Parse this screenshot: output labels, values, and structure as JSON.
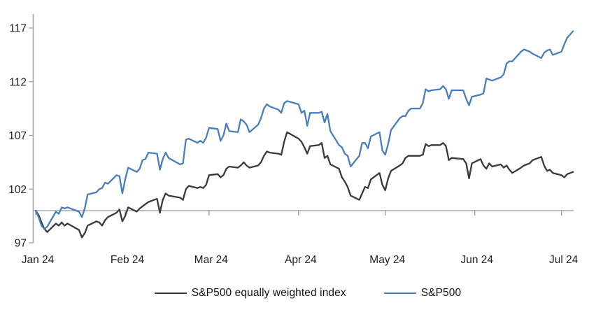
{
  "chart_data": {
    "type": "line",
    "title": "",
    "description": "Indexed performance (start of 2024 = 100) of the S&P500 equally weighted index versus the S&P500, January 2024 to early July 2024",
    "x_axis": {
      "tick_labels": [
        "Jan 24",
        "Feb 24",
        "Mar 24",
        "Apr 24",
        "May 24",
        "Jun 24",
        "Jul 24"
      ],
      "tick_days": [
        1,
        32,
        61,
        92,
        122,
        153,
        183
      ],
      "domain_days": [
        1,
        188
      ],
      "grid": false
    },
    "y_axis": {
      "tick_labels": [
        "97",
        "102",
        "107",
        "112",
        "117"
      ],
      "ticks": [
        97,
        102,
        107,
        112,
        117
      ],
      "range": [
        97,
        118.4
      ],
      "baseline_value": 100,
      "grid": false
    },
    "legend": {
      "position": "bottom-center",
      "entries": [
        {
          "label": "S&P500 equally weighted index",
          "color": "#3a3a3a"
        },
        {
          "label": "S&P500",
          "color": "#4a7ebb"
        }
      ]
    },
    "series": [
      {
        "name": "S&P500 equally weighted index",
        "color": "#3a3a3a",
        "days": [
          1,
          2,
          3,
          4,
          5,
          8,
          9,
          10,
          11,
          12,
          16,
          17,
          18,
          19,
          22,
          23,
          24,
          25,
          26,
          29,
          30,
          31,
          32,
          33,
          36,
          37,
          38,
          39,
          40,
          43,
          44,
          45,
          46,
          47,
          51,
          52,
          53,
          54,
          57,
          58,
          59,
          60,
          61,
          64,
          65,
          66,
          67,
          68,
          71,
          72,
          73,
          74,
          75,
          78,
          79,
          80,
          81,
          82,
          85,
          86,
          87,
          88,
          92,
          93,
          94,
          95,
          96,
          99,
          100,
          101,
          102,
          103,
          106,
          107,
          108,
          109,
          110,
          113,
          114,
          115,
          116,
          117,
          120,
          121,
          122,
          123,
          124,
          127,
          128,
          129,
          130,
          131,
          134,
          135,
          136,
          137,
          138,
          141,
          142,
          143,
          144,
          145,
          149,
          150,
          151,
          152,
          155,
          156,
          157,
          158,
          159,
          162,
          163,
          164,
          165,
          166,
          169,
          170,
          172,
          173,
          176,
          177,
          178,
          179,
          180,
          183,
          184,
          185,
          187
        ],
        "values": [
          100.0,
          99.6,
          98.9,
          98.3,
          98.0,
          98.8,
          98.6,
          98.9,
          98.6,
          98.8,
          98.2,
          97.5,
          97.9,
          98.6,
          99.0,
          98.9,
          98.6,
          99.1,
          99.4,
          99.8,
          100.1,
          99.0,
          99.5,
          100.3,
          99.9,
          100.2,
          100.4,
          100.6,
          100.8,
          101.1,
          99.8,
          101.0,
          101.6,
          101.4,
          101.2,
          101.0,
          102.0,
          102.3,
          102.1,
          102.2,
          102.1,
          102.4,
          103.3,
          103.4,
          103.1,
          103.3,
          103.9,
          104.1,
          104.0,
          104.2,
          104.5,
          104.2,
          104.0,
          104.2,
          104.5,
          105.1,
          105.5,
          105.4,
          105.3,
          105.2,
          106.4,
          107.3,
          106.7,
          106.4,
          105.9,
          105.3,
          106.0,
          106.1,
          106.3,
          104.9,
          105.1,
          104.3,
          103.9,
          103.1,
          102.7,
          102.2,
          101.4,
          101.0,
          101.6,
          102.2,
          102.1,
          102.9,
          103.5,
          102.4,
          101.9,
          103.0,
          103.7,
          104.2,
          104.4,
          104.9,
          105.1,
          105.1,
          105.1,
          105.2,
          106.2,
          106.0,
          106.1,
          106.1,
          106.3,
          106.0,
          104.7,
          104.9,
          104.8,
          104.4,
          103.0,
          104.4,
          104.8,
          104.2,
          103.9,
          104.4,
          104.1,
          104.3,
          104.0,
          104.2,
          103.8,
          103.5,
          104.0,
          104.2,
          104.4,
          104.7,
          105.0,
          104.2,
          103.7,
          103.8,
          103.5,
          103.3,
          103.1,
          103.4,
          103.6
        ]
      },
      {
        "name": "S&P500",
        "color": "#4a7ebb",
        "days": [
          1,
          2,
          3,
          4,
          5,
          8,
          9,
          10,
          11,
          12,
          16,
          17,
          18,
          19,
          22,
          23,
          24,
          25,
          26,
          29,
          30,
          31,
          32,
          33,
          36,
          37,
          38,
          39,
          40,
          43,
          44,
          45,
          46,
          47,
          51,
          52,
          53,
          54,
          57,
          58,
          59,
          60,
          61,
          64,
          65,
          66,
          67,
          68,
          71,
          72,
          73,
          74,
          75,
          78,
          79,
          80,
          81,
          82,
          85,
          86,
          87,
          88,
          92,
          93,
          94,
          95,
          96,
          99,
          100,
          101,
          102,
          103,
          106,
          107,
          108,
          109,
          110,
          113,
          114,
          115,
          116,
          117,
          120,
          121,
          122,
          123,
          124,
          127,
          128,
          129,
          130,
          131,
          134,
          135,
          136,
          137,
          138,
          141,
          142,
          143,
          144,
          145,
          149,
          150,
          151,
          152,
          155,
          156,
          157,
          158,
          159,
          162,
          163,
          164,
          165,
          166,
          169,
          170,
          172,
          173,
          176,
          177,
          178,
          179,
          180,
          183,
          184,
          185,
          187
        ],
        "values": [
          100.0,
          99.4,
          98.6,
          98.3,
          98.5,
          99.9,
          99.7,
          100.3,
          100.2,
          100.3,
          99.9,
          99.4,
          100.2,
          101.5,
          101.7,
          102.0,
          102.1,
          102.6,
          102.5,
          103.3,
          103.2,
          101.6,
          102.9,
          104.0,
          103.6,
          103.9,
          104.7,
          104.8,
          105.4,
          105.3,
          103.8,
          104.8,
          105.4,
          104.9,
          104.3,
          104.4,
          106.6,
          106.7,
          106.3,
          106.5,
          106.3,
          106.8,
          107.7,
          107.6,
          106.5,
          107.0,
          108.1,
          107.4,
          107.3,
          108.5,
          108.3,
          108.0,
          107.3,
          108.0,
          108.6,
          109.5,
          109.9,
          109.7,
          109.4,
          109.1,
          110.0,
          110.2,
          109.9,
          109.1,
          109.3,
          107.9,
          109.1,
          109.1,
          109.2,
          108.2,
          109.0,
          107.4,
          106.1,
          105.9,
          105.3,
          105.1,
          104.1,
          105.1,
          106.3,
          106.3,
          105.8,
          106.9,
          107.3,
          105.6,
          105.2,
          106.2,
          107.5,
          108.6,
          108.8,
          108.8,
          109.3,
          109.5,
          109.5,
          110.0,
          111.3,
          111.1,
          111.2,
          111.3,
          111.6,
          111.3,
          110.4,
          111.2,
          111.2,
          110.4,
          109.8,
          110.6,
          110.8,
          110.9,
          112.3,
          112.2,
          112.1,
          112.4,
          112.7,
          113.7,
          113.9,
          113.9,
          114.8,
          115.0,
          114.8,
          114.6,
          114.2,
          114.7,
          114.9,
          115.0,
          114.5,
          114.8,
          115.5,
          116.1,
          116.7
        ]
      }
    ],
    "colors": {
      "axis": "#a6a6a6",
      "tick": "#a6a6a6",
      "label_text": "#1f1f1f",
      "background": "#ffffff"
    }
  }
}
